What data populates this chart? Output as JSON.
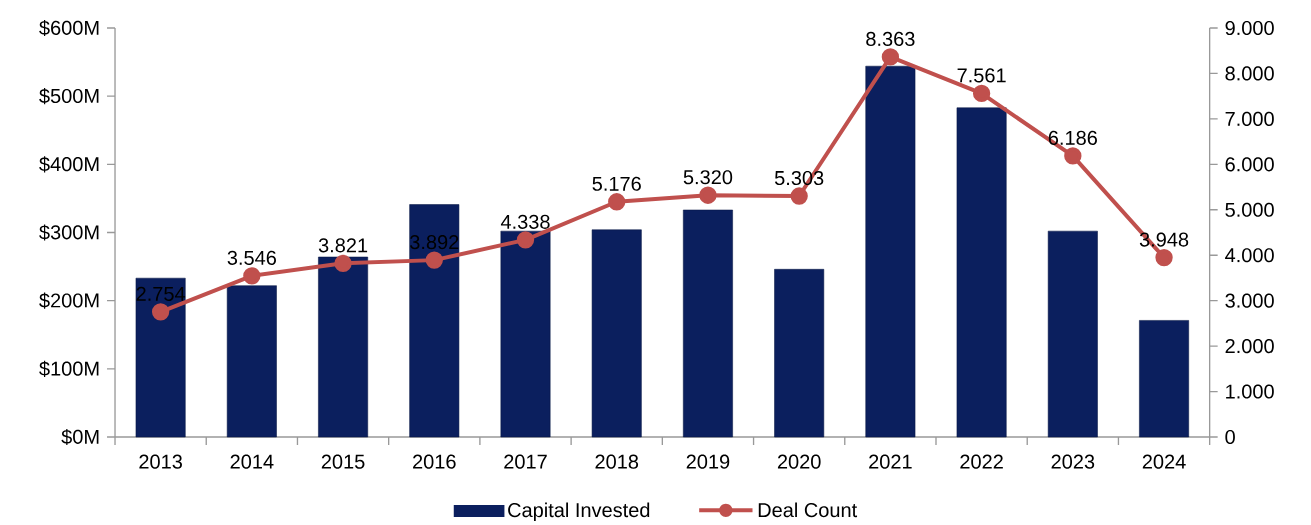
{
  "chart_data": {
    "type": "bar",
    "categories": [
      "2013",
      "2014",
      "2015",
      "2016",
      "2017",
      "2018",
      "2019",
      "2020",
      "2021",
      "2022",
      "2023",
      "2024"
    ],
    "series": [
      {
        "name": "Capital Invested",
        "color": "#0b1f5e",
        "values": [
          233,
          222,
          264,
          341,
          302,
          304,
          333,
          246,
          544,
          483,
          302,
          171
        ]
      },
      {
        "name": "Deal Count",
        "type": "line",
        "axis": "y2",
        "color": "#c0504d",
        "marker": "circle",
        "values": [
          2754,
          3546,
          3821,
          3892,
          4338,
          5176,
          5320,
          5303,
          8363,
          7561,
          6186,
          3948
        ],
        "value_labels": [
          "2.754",
          "3.546",
          "3.821",
          "3.892",
          "4.338",
          "5.176",
          "5.320",
          "5.303",
          "8.363",
          "7.561",
          "6.186",
          "3.948"
        ]
      }
    ],
    "ylim": [
      0,
      600
    ],
    "yticks": [
      {
        "value": 0,
        "label": "$0M"
      },
      {
        "value": 100,
        "label": "$100M"
      },
      {
        "value": 200,
        "label": "$200M"
      },
      {
        "value": 300,
        "label": "$300M"
      },
      {
        "value": 400,
        "label": "$400M"
      },
      {
        "value": 500,
        "label": "$500M"
      },
      {
        "value": 600,
        "label": "$600M"
      }
    ],
    "y2lim": [
      0,
      9000
    ],
    "y2ticks": [
      0,
      {
        "value": 1000,
        "label": "1.000"
      },
      {
        "value": 2000,
        "label": "2.000"
      },
      {
        "value": 3000,
        "label": "3.000"
      },
      {
        "value": 4000,
        "label": "4.000"
      },
      {
        "value": 5000,
        "label": "5.000"
      },
      {
        "value": 6000,
        "label": "6.000"
      },
      {
        "value": 7000,
        "label": "7.000"
      },
      {
        "value": 8000,
        "label": "8.000"
      },
      {
        "value": 9000,
        "label": "9.000"
      }
    ],
    "legend": "bottom"
  }
}
